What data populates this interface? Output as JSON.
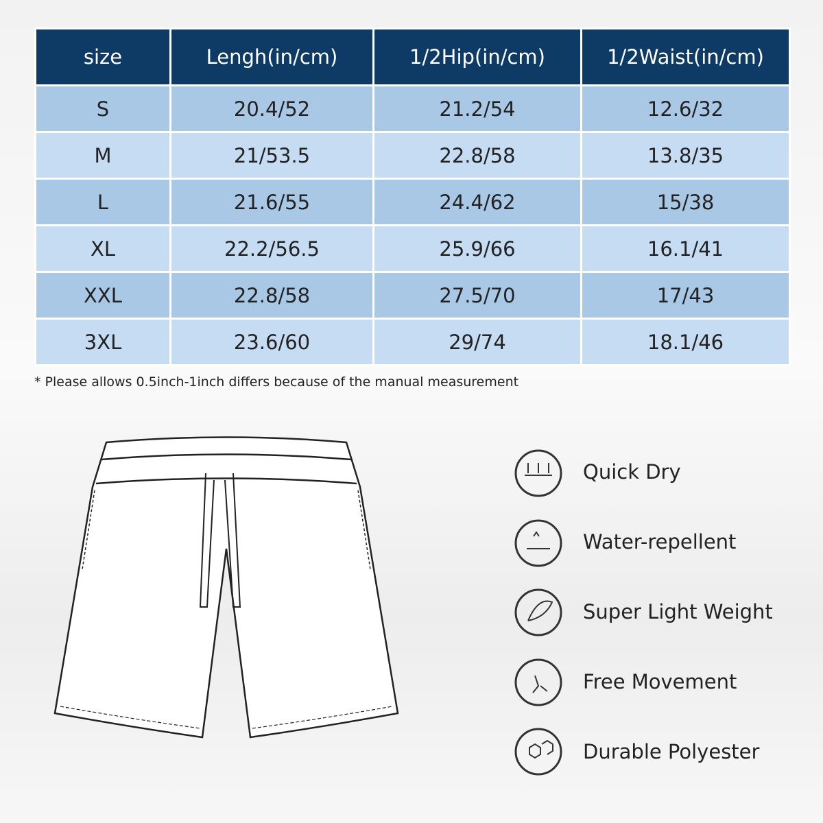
{
  "table": {
    "header": [
      "size",
      "Lengh(in/cm)",
      "1/2Hip(in/cm)",
      "1/2Waist(in/cm)"
    ],
    "rows": [
      [
        "S",
        "20.4/52",
        "21.2/54",
        "12.6/32"
      ],
      [
        "M",
        "21/53.5",
        "22.8/58",
        "13.8/35"
      ],
      [
        "L",
        "21.6/55",
        "24.4/62",
        "15/38"
      ],
      [
        "XL",
        "22.2/56.5",
        "25.9/66",
        "16.1/41"
      ],
      [
        "XXL",
        "22.8/58",
        "27.5/70",
        "17/43"
      ],
      [
        "3XL",
        "23.6/60",
        "29/74",
        "18.1/46"
      ]
    ]
  },
  "note": "* Please allows 0.5inch-1inch differs because of the manual measurement",
  "features": [
    "Quick Dry",
    "Water-repellent",
    "Super Light Weight",
    "Free Movement",
    "Durable Polyester"
  ]
}
